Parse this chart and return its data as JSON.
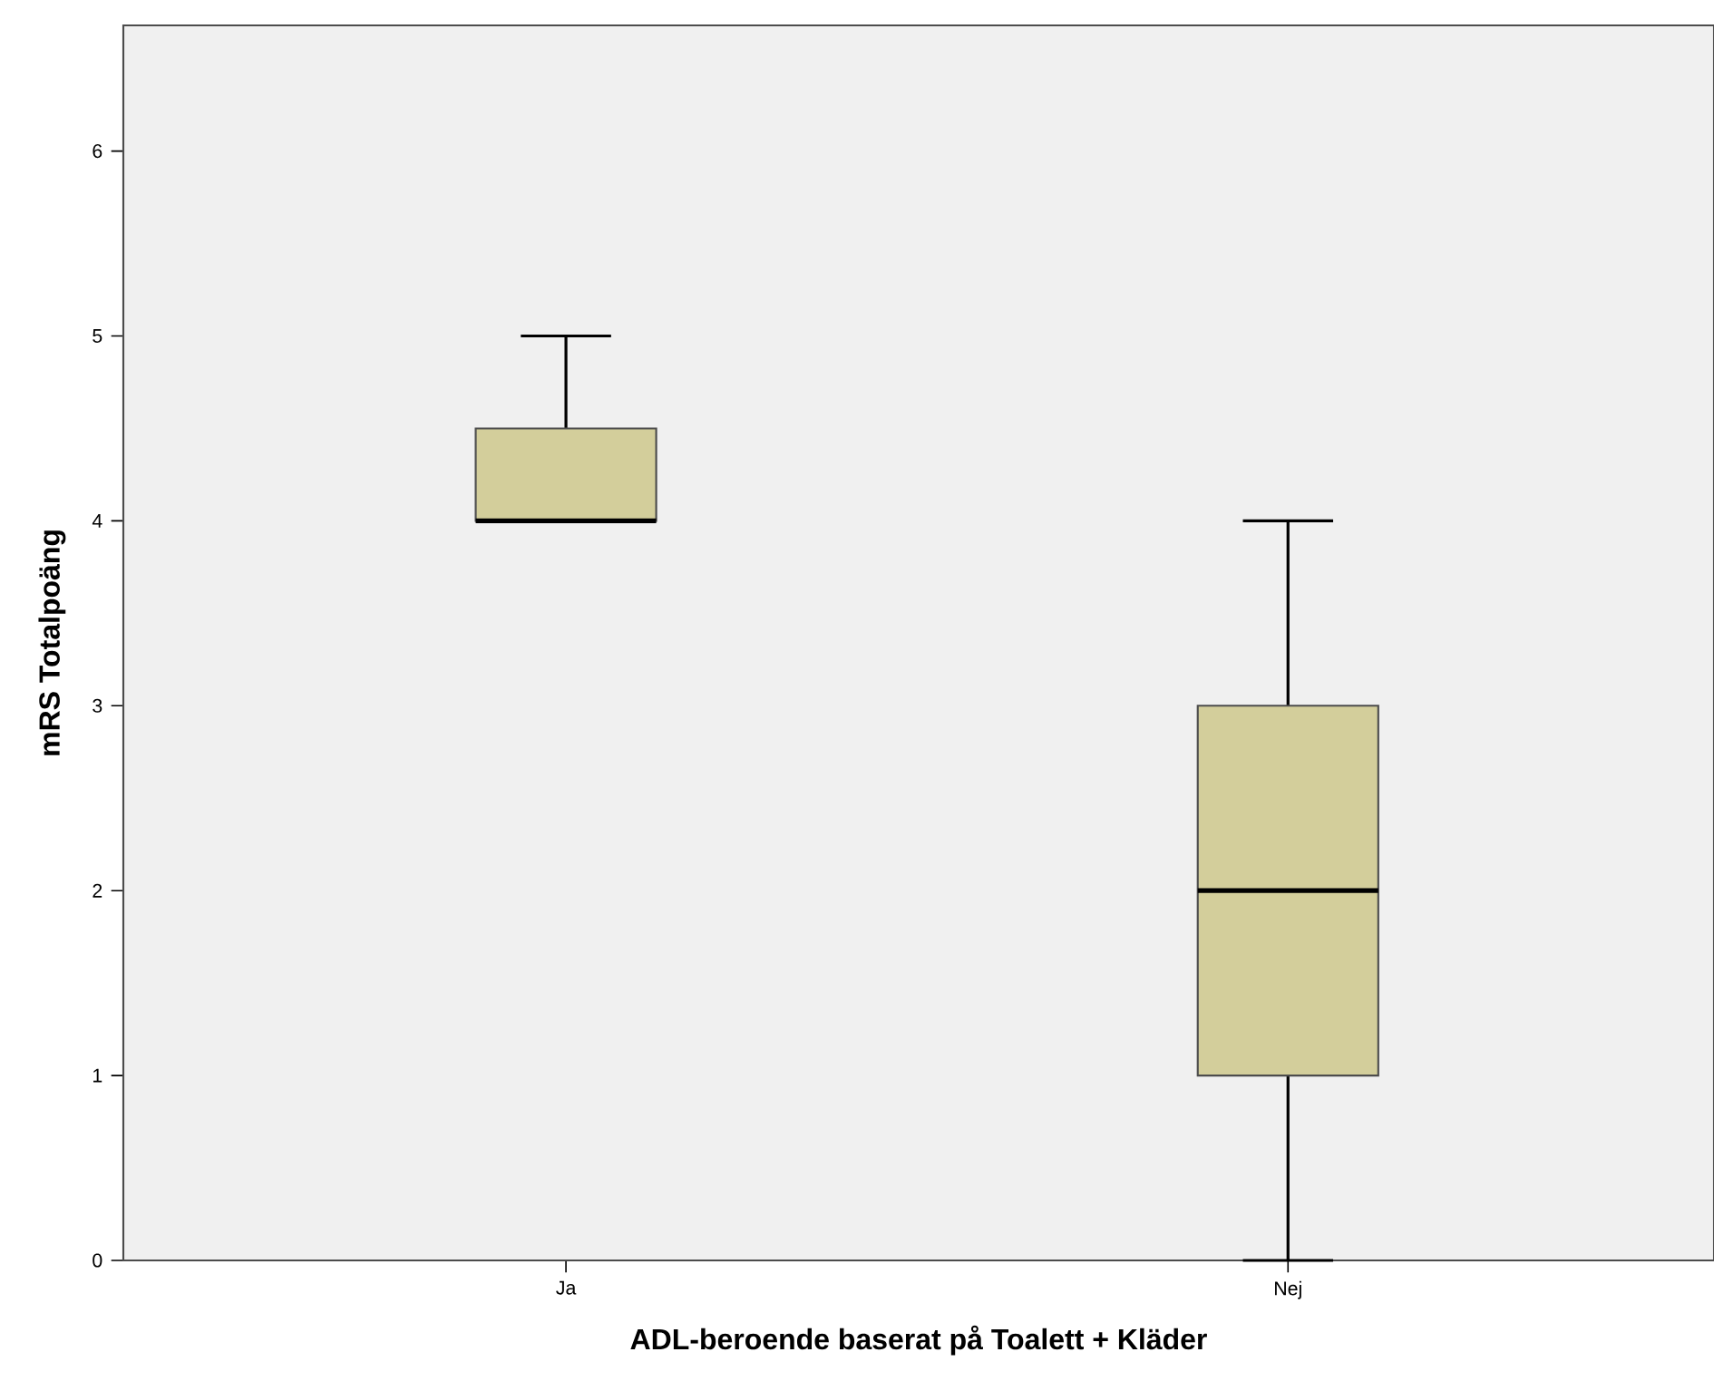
{
  "chart_data": {
    "type": "box",
    "xlabel": "ADL-beroende baserat på Toalett + Kläder",
    "ylabel": "mRS Totalpoäng",
    "categories": [
      "Ja",
      "Nej"
    ],
    "boxes": [
      {
        "low": 4,
        "q1": 4,
        "median": 4,
        "q3": 4.5,
        "high": 5
      },
      {
        "low": 0,
        "q1": 1,
        "median": 2,
        "q3": 3,
        "high": 4
      }
    ],
    "color": "#d3ce9b",
    "ylim": [
      0,
      6.68
    ],
    "yticks": [
      0,
      1,
      2,
      3,
      4,
      5,
      6
    ]
  }
}
